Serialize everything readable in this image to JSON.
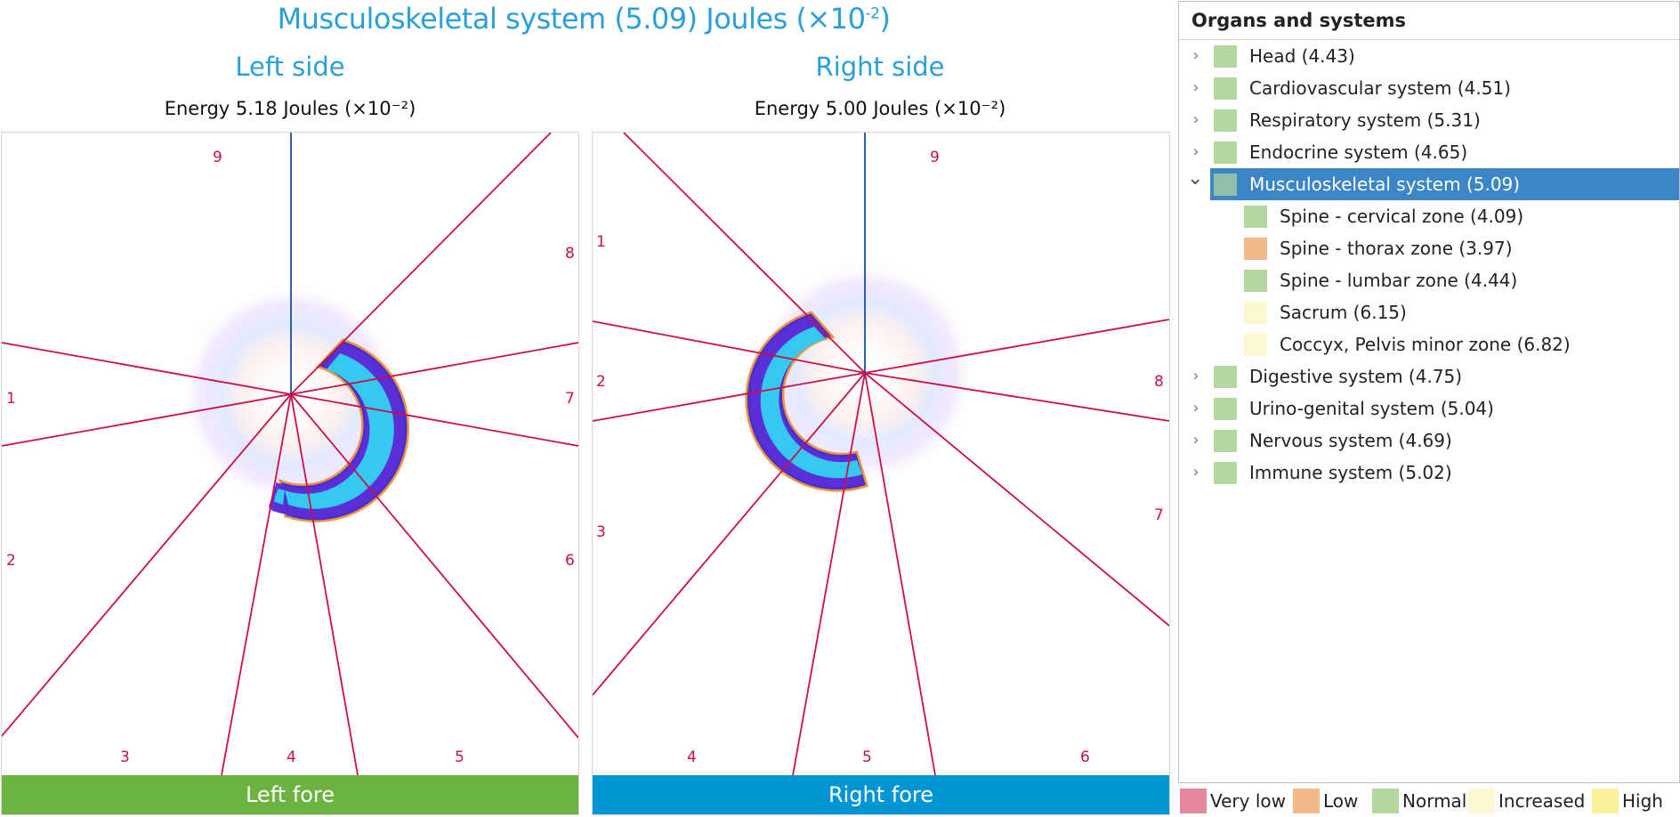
{
  "title": {
    "prefix": "Musculoskeletal system (5.09) Joules (×10",
    "exp": "-2",
    "suffix": ")"
  },
  "left": {
    "heading": "Left side",
    "energy": "Energy 5.18 Joules (×10⁻²)",
    "fore_label": "Left fore",
    "fore_color": "#6db33f",
    "zones": [
      "9",
      "8",
      "1",
      "7",
      "2",
      "6",
      "3",
      "4",
      "5"
    ]
  },
  "right": {
    "heading": "Right side",
    "energy": "Energy 5.00 Joules (×10⁻²)",
    "fore_label": "Right fore",
    "fore_color": "#0096d6",
    "zones": [
      "9",
      "1",
      "2",
      "8",
      "3",
      "7",
      "4",
      "5",
      "6"
    ]
  },
  "colors": {
    "accent": "#2b9fd8",
    "sector_line": "#c8104a",
    "axis_line": "#1a4fa3",
    "selected_row": "#3c85c6"
  },
  "tree": {
    "header": "Organs and systems",
    "rows": [
      {
        "label": "Head (4.43)",
        "level": 0,
        "state": "collapsed",
        "swatch": "#b3d9a0",
        "selected": false
      },
      {
        "label": "Cardiovascular system (4.51)",
        "level": 0,
        "state": "collapsed",
        "swatch": "#b3d9a0",
        "selected": false
      },
      {
        "label": "Respiratory system (5.31)",
        "level": 0,
        "state": "collapsed",
        "swatch": "#b3d9a0",
        "selected": false
      },
      {
        "label": "Endocrine system (4.65)",
        "level": 0,
        "state": "collapsed",
        "swatch": "#b3d9a0",
        "selected": false
      },
      {
        "label": "Musculoskeletal system (5.09)",
        "level": 0,
        "state": "expanded",
        "swatch": "#8fbfa8",
        "selected": true
      },
      {
        "label": "Spine - cervical zone (4.09)",
        "level": 1,
        "state": "leaf",
        "swatch": "#b3d9a0",
        "selected": false
      },
      {
        "label": "Spine - thorax zone (3.97)",
        "level": 1,
        "state": "leaf",
        "swatch": "#f2b98a",
        "selected": false
      },
      {
        "label": "Spine - lumbar zone (4.44)",
        "level": 1,
        "state": "leaf",
        "swatch": "#b3d9a0",
        "selected": false
      },
      {
        "label": "Sacrum (6.15)",
        "level": 1,
        "state": "leaf",
        "swatch": "#fbf7cf",
        "selected": false
      },
      {
        "label": "Coccyx, Pelvis minor zone (6.82)",
        "level": 1,
        "state": "leaf",
        "swatch": "#fbf7cf",
        "selected": false
      },
      {
        "label": "Digestive system (4.75)",
        "level": 0,
        "state": "collapsed",
        "swatch": "#b3d9a0",
        "selected": false
      },
      {
        "label": "Urino-genital system (5.04)",
        "level": 0,
        "state": "collapsed",
        "swatch": "#b3d9a0",
        "selected": false
      },
      {
        "label": "Nervous system (4.69)",
        "level": 0,
        "state": "collapsed",
        "swatch": "#b3d9a0",
        "selected": false
      },
      {
        "label": "Immune system (5.02)",
        "level": 0,
        "state": "collapsed",
        "swatch": "#b3d9a0",
        "selected": false
      }
    ]
  },
  "legend": [
    {
      "label": "Very low",
      "color": "#e7879f"
    },
    {
      "label": "Low",
      "color": "#f2b98a"
    },
    {
      "label": "Normal",
      "color": "#b3d9a0"
    },
    {
      "label": "Increased",
      "color": "#fbf7cf"
    },
    {
      "label": "High",
      "color": "#fbf29a"
    }
  ]
}
